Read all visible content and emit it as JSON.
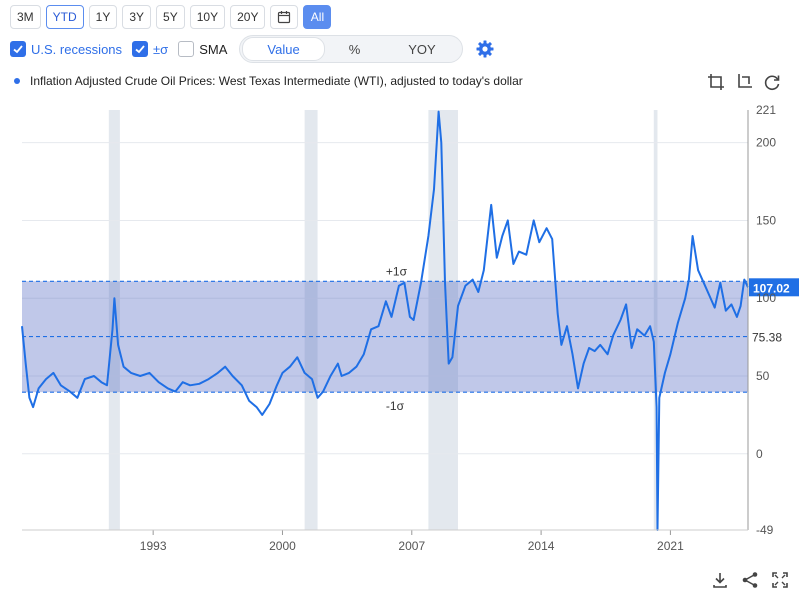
{
  "toolbar": {
    "ranges": [
      "3M",
      "YTD",
      "1Y",
      "3Y",
      "5Y",
      "10Y",
      "20Y"
    ],
    "selected_range": "YTD",
    "all_label": "All"
  },
  "options": {
    "recessions_label": "U.S. recessions",
    "sigma_label": "±σ",
    "sma_label": "SMA",
    "modes": [
      "Value",
      "%",
      "YOY"
    ],
    "active_mode": "Value"
  },
  "series_title": "Inflation Adjusted Crude Oil Prices: West Texas Intermediate (WTI), adjusted to today's dollar",
  "colors": {
    "line": "#1f6fe5",
    "band": "#5a6fc6",
    "recession": "#e3e8ee",
    "accent": "#2f6fe8"
  },
  "chart_data": {
    "type": "line",
    "title": "Inflation Adjusted Crude Oil Prices: West Texas Intermediate (WTI), adjusted to today's dollar",
    "x_ticks": [
      1993,
      2000,
      2007,
      2014,
      2021
    ],
    "y_ticks": [
      221,
      200,
      150,
      100,
      50,
      0,
      -49
    ],
    "xlim": [
      1985.9,
      2025.2
    ],
    "ylim": [
      -49,
      221
    ],
    "mean": 75.38,
    "mean_label": "75.38",
    "sigma_upper_label": "+1σ",
    "sigma_lower_label": "-1σ",
    "plus_sigma": 110.9,
    "minus_sigma": 39.6,
    "last_value": 107.02,
    "last_value_label": "107.02",
    "recessions": [
      [
        1990.6,
        1991.2
      ],
      [
        2001.2,
        2001.9
      ],
      [
        2007.9,
        2009.5
      ],
      [
        2020.1,
        2020.3
      ]
    ],
    "series": [
      {
        "points": [
          [
            1985.9,
            82
          ],
          [
            1986.1,
            58
          ],
          [
            1986.3,
            36
          ],
          [
            1986.5,
            30
          ],
          [
            1986.8,
            42
          ],
          [
            1987.2,
            48
          ],
          [
            1987.6,
            52
          ],
          [
            1988.0,
            44
          ],
          [
            1988.5,
            40
          ],
          [
            1988.9,
            36
          ],
          [
            1989.3,
            48
          ],
          [
            1989.8,
            50
          ],
          [
            1990.2,
            46
          ],
          [
            1990.5,
            44
          ],
          [
            1990.8,
            80
          ],
          [
            1990.9,
            100
          ],
          [
            1991.1,
            70
          ],
          [
            1991.4,
            56
          ],
          [
            1991.8,
            52
          ],
          [
            1992.3,
            50
          ],
          [
            1992.8,
            52
          ],
          [
            1993.3,
            46
          ],
          [
            1993.8,
            42
          ],
          [
            1994.2,
            40
          ],
          [
            1994.6,
            46
          ],
          [
            1995.0,
            44
          ],
          [
            1995.5,
            45
          ],
          [
            1996.0,
            48
          ],
          [
            1996.5,
            52
          ],
          [
            1996.9,
            56
          ],
          [
            1997.3,
            50
          ],
          [
            1997.8,
            44
          ],
          [
            1998.2,
            34
          ],
          [
            1998.6,
            30
          ],
          [
            1998.9,
            25
          ],
          [
            1999.3,
            32
          ],
          [
            1999.7,
            44
          ],
          [
            2000.0,
            52
          ],
          [
            2000.4,
            56
          ],
          [
            2000.8,
            62
          ],
          [
            2001.2,
            52
          ],
          [
            2001.6,
            48
          ],
          [
            2001.9,
            36
          ],
          [
            2002.2,
            40
          ],
          [
            2002.6,
            50
          ],
          [
            2003.0,
            58
          ],
          [
            2003.2,
            50
          ],
          [
            2003.6,
            52
          ],
          [
            2004.0,
            56
          ],
          [
            2004.4,
            64
          ],
          [
            2004.8,
            80
          ],
          [
            2005.2,
            82
          ],
          [
            2005.6,
            98
          ],
          [
            2005.9,
            88
          ],
          [
            2006.3,
            108
          ],
          [
            2006.6,
            110
          ],
          [
            2006.9,
            88
          ],
          [
            2007.1,
            86
          ],
          [
            2007.5,
            110
          ],
          [
            2007.9,
            140
          ],
          [
            2008.2,
            170
          ],
          [
            2008.45,
            220
          ],
          [
            2008.6,
            200
          ],
          [
            2008.8,
            110
          ],
          [
            2009.0,
            58
          ],
          [
            2009.2,
            62
          ],
          [
            2009.5,
            95
          ],
          [
            2009.9,
            108
          ],
          [
            2010.3,
            112
          ],
          [
            2010.6,
            104
          ],
          [
            2010.9,
            118
          ],
          [
            2011.3,
            160
          ],
          [
            2011.6,
            126
          ],
          [
            2011.9,
            140
          ],
          [
            2012.2,
            150
          ],
          [
            2012.5,
            122
          ],
          [
            2012.8,
            130
          ],
          [
            2013.2,
            128
          ],
          [
            2013.6,
            150
          ],
          [
            2013.9,
            136
          ],
          [
            2014.3,
            145
          ],
          [
            2014.6,
            138
          ],
          [
            2014.9,
            90
          ],
          [
            2015.1,
            70
          ],
          [
            2015.4,
            82
          ],
          [
            2015.7,
            64
          ],
          [
            2016.0,
            42
          ],
          [
            2016.3,
            58
          ],
          [
            2016.6,
            68
          ],
          [
            2016.9,
            66
          ],
          [
            2017.2,
            70
          ],
          [
            2017.6,
            64
          ],
          [
            2017.9,
            76
          ],
          [
            2018.3,
            86
          ],
          [
            2018.6,
            96
          ],
          [
            2018.9,
            68
          ],
          [
            2019.2,
            80
          ],
          [
            2019.6,
            76
          ],
          [
            2019.9,
            82
          ],
          [
            2020.1,
            72
          ],
          [
            2020.25,
            30
          ],
          [
            2020.3,
            -49
          ],
          [
            2020.4,
            36
          ],
          [
            2020.7,
            52
          ],
          [
            2021.0,
            64
          ],
          [
            2021.4,
            84
          ],
          [
            2021.8,
            100
          ],
          [
            2022.0,
            112
          ],
          [
            2022.2,
            140
          ],
          [
            2022.5,
            118
          ],
          [
            2022.8,
            110
          ],
          [
            2023.1,
            102
          ],
          [
            2023.4,
            94
          ],
          [
            2023.7,
            110
          ],
          [
            2024.0,
            92
          ],
          [
            2024.3,
            96
          ],
          [
            2024.6,
            88
          ],
          [
            2024.8,
            95
          ],
          [
            2025.0,
            112
          ],
          [
            2025.2,
            107
          ]
        ]
      }
    ]
  }
}
